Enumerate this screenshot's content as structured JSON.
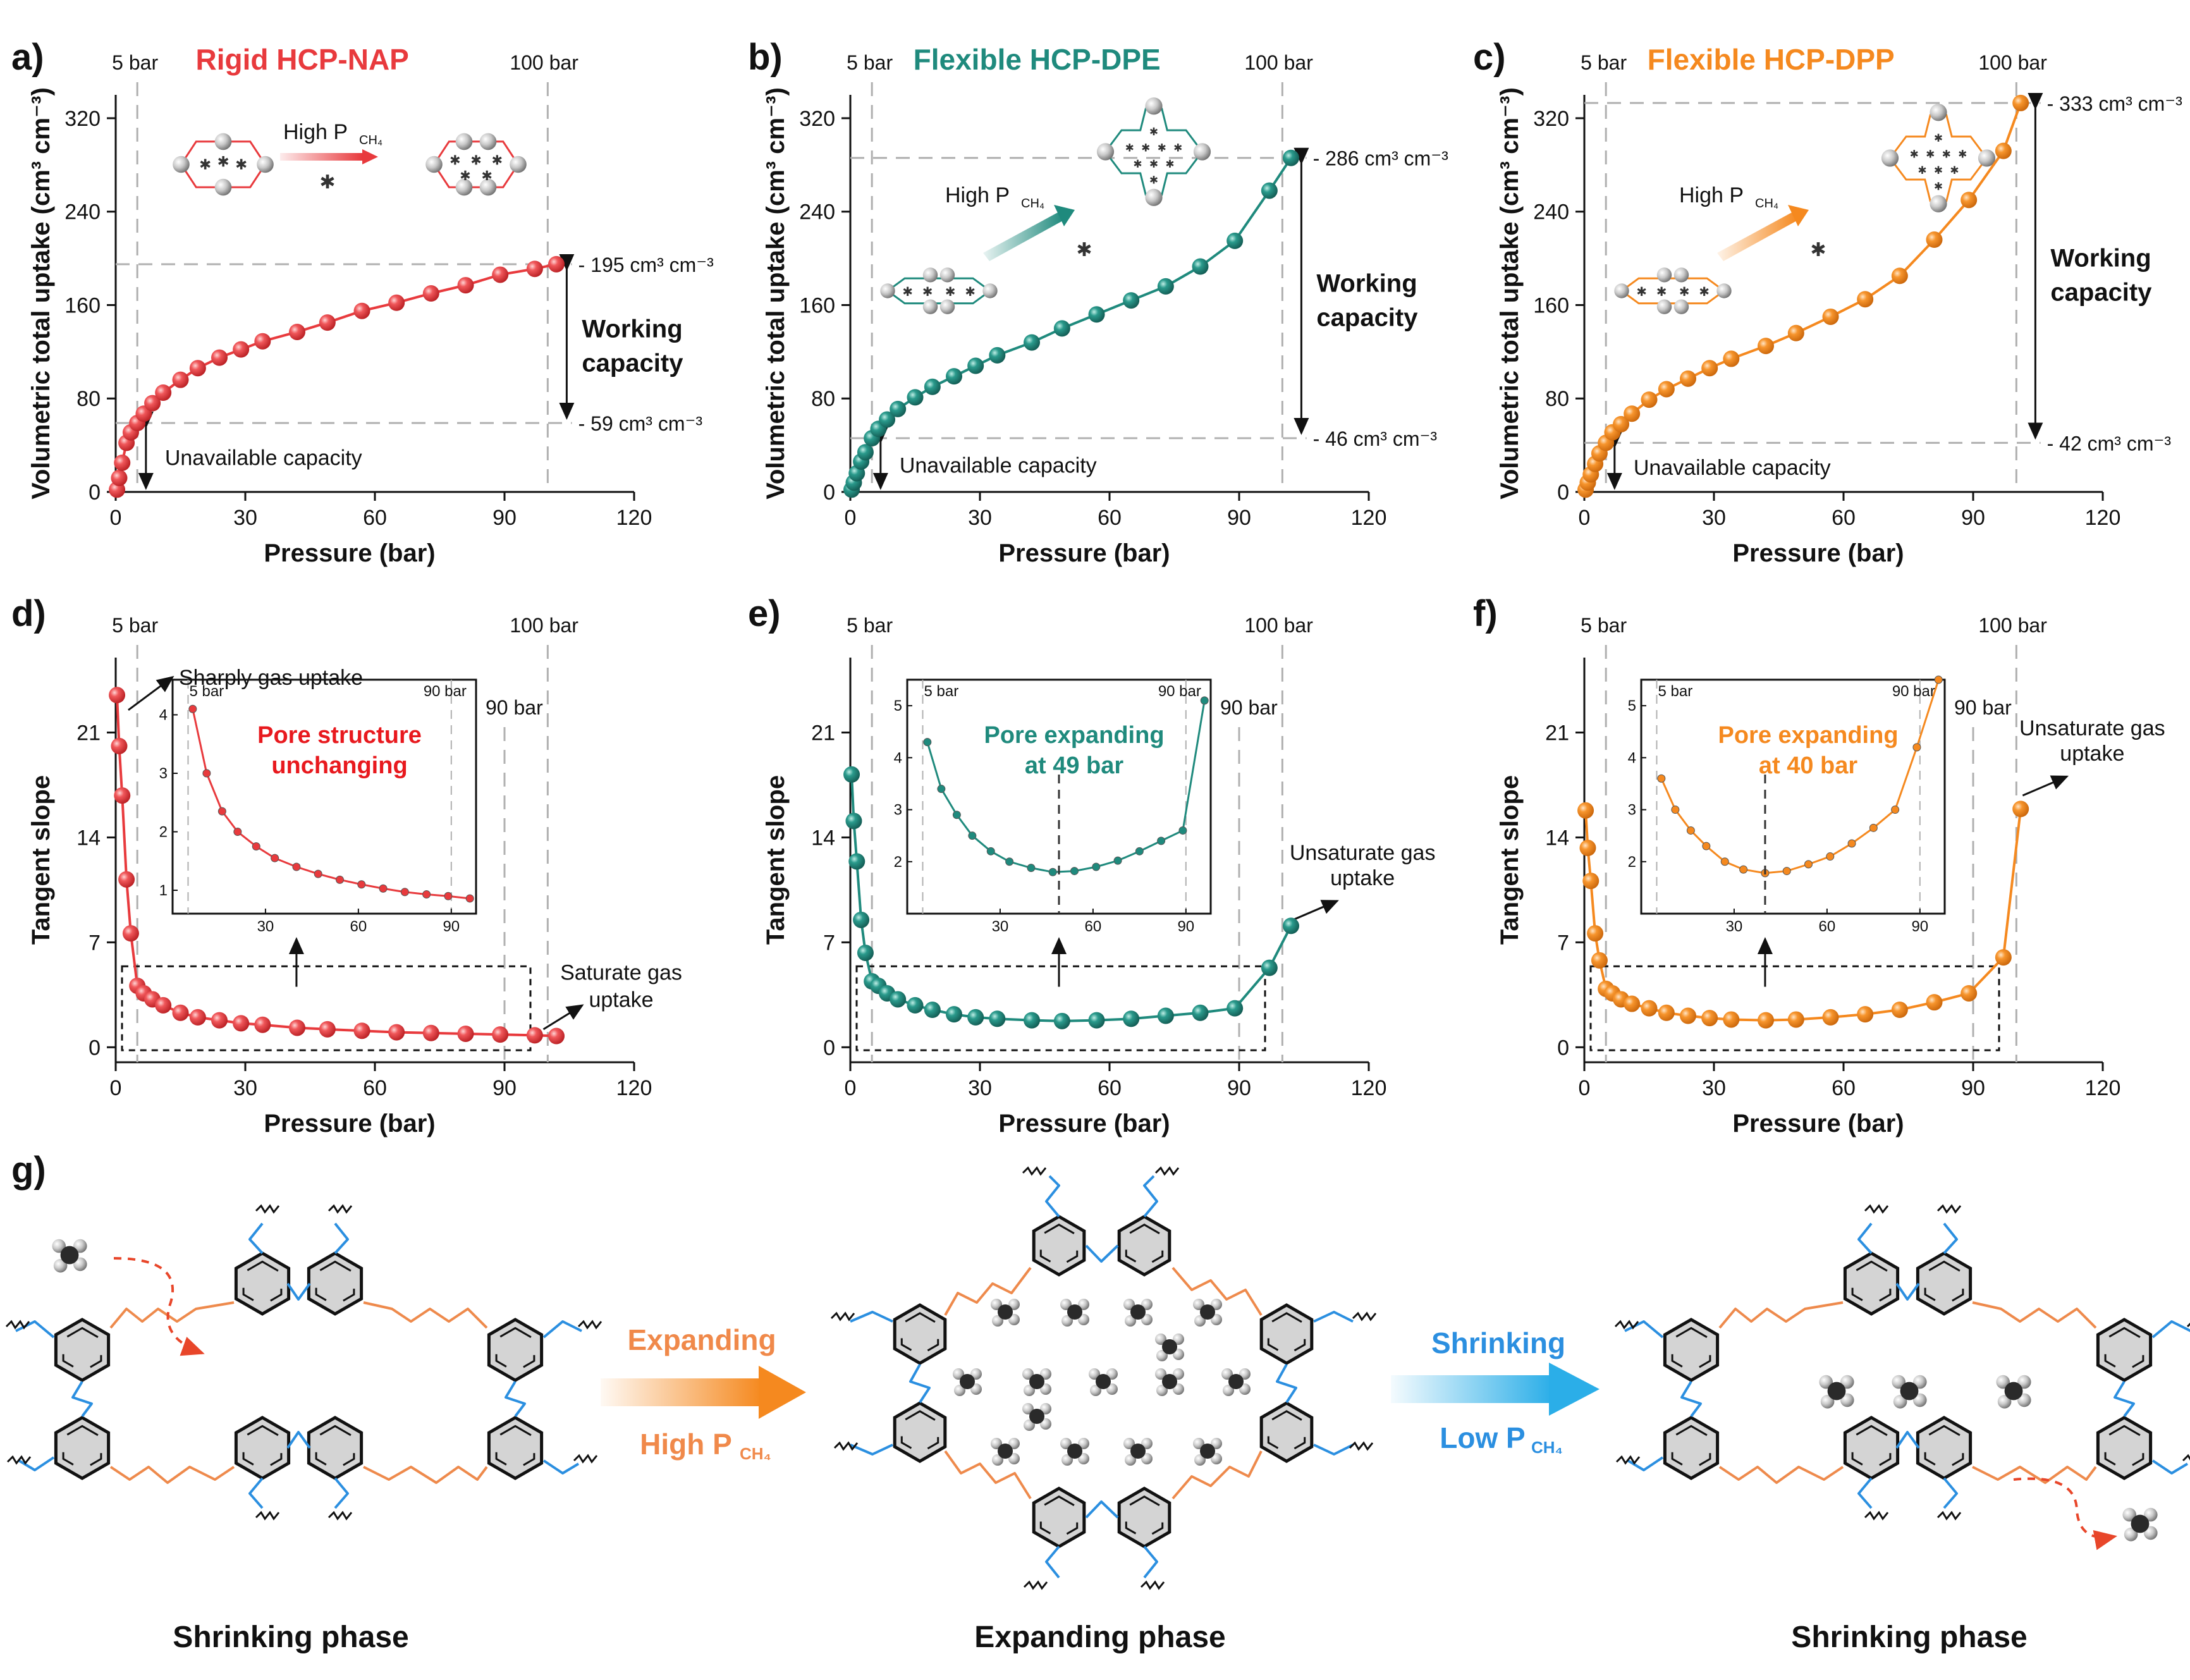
{
  "panel_labels": [
    "a)",
    "b)",
    "c)",
    "d)",
    "e)",
    "f)",
    "g)"
  ],
  "colors": {
    "nap": "#e83a3d",
    "dpe": "#1f8a7d",
    "dpp": "#f5891f",
    "blue": "#2b8fe0",
    "guide": "#b0b0b0"
  },
  "chart_data": [
    {
      "type": "scatter",
      "panel": "a)",
      "title": "Rigid HCP-NAP",
      "color": "#e83a3d",
      "xlabel": "Pressure (bar)",
      "ylabel": "Volumetric total uptake (cm³ cm⁻³)",
      "xlim": [
        0,
        120
      ],
      "ylim": [
        0,
        340
      ],
      "xticks": [
        0,
        30,
        60,
        90,
        120
      ],
      "yticks": [
        0,
        80,
        160,
        240,
        320
      ],
      "x": [
        0.3,
        0.8,
        1.5,
        2.5,
        3.5,
        5,
        6.5,
        8.5,
        11,
        15,
        19,
        24,
        29,
        34,
        42,
        49,
        57,
        65,
        73,
        81,
        89,
        97,
        102
      ],
      "y": [
        2,
        12,
        25,
        42,
        51,
        59,
        67,
        76,
        85,
        96,
        106,
        115,
        122,
        129,
        137,
        145,
        155,
        162,
        170,
        177,
        186,
        191,
        195
      ],
      "ref_lines_x": [
        5,
        100
      ],
      "ref_labels": [
        "5 bar",
        "100 bar"
      ],
      "values_marked": [
        "195 cm³ cm⁻³",
        "59 cm³ cm⁻³"
      ],
      "ref_lines_y": [
        195,
        59
      ],
      "working_label": [
        "Working",
        "capacity"
      ],
      "unavailable_label": "Unavailable capacity",
      "high_p_label": "High P",
      "high_p_sub": "CH₄"
    },
    {
      "type": "scatter",
      "panel": "b)",
      "title": "Flexible HCP-DPE",
      "color": "#1f8a7d",
      "xlabel": "Pressure (bar)",
      "ylabel": "Volumetric total uptake (cm³ cm⁻³)",
      "xlim": [
        0,
        120
      ],
      "ylim": [
        0,
        340
      ],
      "xticks": [
        0,
        30,
        60,
        90,
        120
      ],
      "yticks": [
        0,
        80,
        160,
        240,
        320
      ],
      "x": [
        0.3,
        0.8,
        1.5,
        2.5,
        3.5,
        5,
        6.5,
        8.5,
        11,
        15,
        19,
        24,
        29,
        34,
        42,
        49,
        57,
        65,
        73,
        81,
        89,
        97,
        102
      ],
      "y": [
        2,
        8,
        16,
        26,
        34,
        46,
        54,
        62,
        71,
        81,
        90,
        99,
        108,
        117,
        128,
        140,
        152,
        164,
        176,
        193,
        215,
        258,
        286
      ],
      "ref_lines_x": [
        5,
        100
      ],
      "ref_labels": [
        "5 bar",
        "100 bar"
      ],
      "values_marked": [
        "286 cm³ cm⁻³",
        "46 cm³ cm⁻³"
      ],
      "ref_lines_y": [
        286,
        46
      ],
      "working_label": [
        "Working",
        "capacity"
      ],
      "unavailable_label": "Unavailable capacity",
      "high_p_label": "High P",
      "high_p_sub": "CH₄"
    },
    {
      "type": "scatter",
      "panel": "c)",
      "title": "Flexible HCP-DPP",
      "color": "#f5891f",
      "xlabel": "Pressure (bar)",
      "ylabel": "Volumetric total uptake (cm³ cm⁻³)",
      "xlim": [
        0,
        120
      ],
      "ylim": [
        0,
        340
      ],
      "xticks": [
        0,
        30,
        60,
        90,
        120
      ],
      "yticks": [
        0,
        80,
        160,
        240,
        320
      ],
      "x": [
        0.3,
        0.8,
        1.5,
        2.5,
        3.5,
        5,
        6.5,
        8.5,
        11,
        15,
        19,
        24,
        29,
        34,
        42,
        49,
        57,
        65,
        73,
        81,
        89,
        97,
        101
      ],
      "y": [
        2,
        8,
        15,
        24,
        33,
        42,
        51,
        58,
        67,
        79,
        88,
        97,
        106,
        114,
        125,
        136,
        150,
        165,
        185,
        216,
        250,
        292,
        333
      ],
      "ref_lines_x": [
        5,
        100
      ],
      "ref_labels": [
        "5 bar",
        "100 bar"
      ],
      "values_marked": [
        "333 cm³ cm⁻³",
        "42 cm³ cm⁻³"
      ],
      "ref_lines_y": [
        333,
        42
      ],
      "working_label": [
        "Working",
        "capacity"
      ],
      "unavailable_label": "Unavailable capacity",
      "high_p_label": "High P",
      "high_p_sub": "CH₄"
    },
    {
      "type": "scatter",
      "panel": "d)",
      "color": "#e83a3d",
      "xlabel": "Pressure (bar)",
      "ylabel": "Tangent slope",
      "xlim": [
        0,
        120
      ],
      "ylim": [
        -1,
        26
      ],
      "xticks": [
        0,
        30,
        60,
        90,
        120
      ],
      "yticks": [
        0,
        7,
        14,
        21
      ],
      "x": [
        0.3,
        0.8,
        1.5,
        2.5,
        3.5,
        5,
        6.5,
        8.5,
        11,
        15,
        19,
        24,
        29,
        34,
        42,
        49,
        57,
        65,
        73,
        81,
        89,
        97,
        102
      ],
      "y": [
        23.5,
        20.1,
        16.8,
        11.2,
        7.6,
        4.1,
        3.6,
        3.2,
        2.8,
        2.3,
        2.0,
        1.8,
        1.6,
        1.5,
        1.3,
        1.2,
        1.1,
        1.0,
        0.95,
        0.9,
        0.85,
        0.8,
        0.75
      ],
      "ref_lines_x": [
        5,
        100,
        90
      ],
      "ref_labels": [
        "5 bar",
        "100 bar",
        "90 bar"
      ],
      "annotations": [
        "Sharply gas uptake",
        "Saturate gas",
        "uptake"
      ],
      "inset": {
        "title": [
          "Pore structure",
          "unchanging"
        ],
        "xticks": [
          30,
          60,
          90
        ],
        "yticks": [
          1,
          2,
          3,
          4
        ],
        "xlim": [
          0,
          98
        ],
        "ylim": [
          0.6,
          4.6
        ],
        "x": [
          6.5,
          11,
          16,
          21,
          27,
          33,
          40,
          47,
          54,
          61,
          68,
          75,
          82,
          89,
          96
        ],
        "y": [
          4.1,
          3.0,
          2.35,
          2.0,
          1.75,
          1.55,
          1.4,
          1.28,
          1.18,
          1.1,
          1.03,
          0.97,
          0.93,
          0.9,
          0.86
        ],
        "ref_labels": [
          "5 bar",
          "90 bar"
        ],
        "ref_x": [
          5,
          90
        ]
      }
    },
    {
      "type": "scatter",
      "panel": "e)",
      "color": "#1f8a7d",
      "xlabel": "Pressure (bar)",
      "ylabel": "Tangent slope",
      "xlim": [
        0,
        120
      ],
      "ylim": [
        -1,
        26
      ],
      "xticks": [
        0,
        30,
        60,
        90,
        120
      ],
      "yticks": [
        0,
        7,
        14,
        21
      ],
      "x": [
        0.3,
        0.8,
        1.5,
        2.5,
        3.5,
        5,
        6.5,
        8.5,
        11,
        15,
        19,
        24,
        29,
        34,
        42,
        49,
        57,
        65,
        73,
        81,
        89,
        97,
        102
      ],
      "y": [
        18.2,
        15.1,
        12.4,
        8.5,
        6.3,
        4.4,
        4.1,
        3.6,
        3.2,
        2.8,
        2.5,
        2.2,
        2.0,
        1.9,
        1.8,
        1.75,
        1.8,
        1.9,
        2.1,
        2.3,
        2.6,
        5.3,
        8.1
      ],
      "ref_lines_x": [
        5,
        100,
        90
      ],
      "ref_labels": [
        "5 bar",
        "100 bar",
        "90 bar"
      ],
      "annotations": [
        "Unsaturate gas",
        "uptake"
      ],
      "inset": {
        "title": [
          "Pore expanding",
          "at 49 bar"
        ],
        "xticks": [
          30,
          60,
          90
        ],
        "yticks": [
          2,
          3,
          4,
          5
        ],
        "xlim": [
          0,
          98
        ],
        "ylim": [
          1.0,
          5.5
        ],
        "x": [
          6.5,
          11,
          16,
          21,
          27,
          33,
          40,
          47,
          54,
          61,
          68,
          75,
          82,
          89,
          96
        ],
        "y": [
          4.3,
          3.4,
          2.9,
          2.5,
          2.2,
          2.0,
          1.88,
          1.8,
          1.82,
          1.9,
          2.02,
          2.2,
          2.4,
          2.6,
          5.1
        ],
        "ref_labels": [
          "5 bar",
          "90 bar"
        ],
        "ref_x": [
          5,
          90
        ],
        "mark_x": 49
      }
    },
    {
      "type": "scatter",
      "panel": "f)",
      "color": "#f5891f",
      "xlabel": "Pressure (bar)",
      "ylabel": "Tangent slope",
      "xlim": [
        0,
        120
      ],
      "ylim": [
        -1,
        26
      ],
      "xticks": [
        0,
        30,
        60,
        90,
        120
      ],
      "yticks": [
        0,
        7,
        14,
        21
      ],
      "x": [
        0.3,
        0.8,
        1.5,
        2.5,
        3.5,
        5,
        6.5,
        8.5,
        11,
        15,
        19,
        24,
        29,
        34,
        42,
        49,
        57,
        65,
        73,
        81,
        89,
        97,
        101
      ],
      "y": [
        15.8,
        13.3,
        11.1,
        7.6,
        5.8,
        3.9,
        3.6,
        3.2,
        2.9,
        2.6,
        2.3,
        2.1,
        1.95,
        1.85,
        1.8,
        1.85,
        2.0,
        2.2,
        2.5,
        3.0,
        3.6,
        6.0,
        15.9
      ],
      "ref_lines_x": [
        5,
        100,
        90
      ],
      "ref_labels": [
        "5 bar",
        "100 bar",
        "90 bar"
      ],
      "annotations": [
        "Unsaturate gas",
        "uptake"
      ],
      "inset": {
        "title": [
          "Pore expanding",
          "at 40 bar"
        ],
        "xticks": [
          30,
          60,
          90
        ],
        "yticks": [
          2,
          3,
          4,
          5
        ],
        "xlim": [
          0,
          98
        ],
        "ylim": [
          1.0,
          5.5
        ],
        "x": [
          6.5,
          11,
          16,
          21,
          27,
          33,
          40,
          47,
          54,
          61,
          68,
          75,
          82,
          89,
          96
        ],
        "y": [
          3.6,
          3.0,
          2.6,
          2.3,
          2.0,
          1.85,
          1.78,
          1.82,
          1.95,
          2.1,
          2.35,
          2.65,
          3.0,
          4.2,
          5.5
        ],
        "ref_labels": [
          "5 bar",
          "90 bar"
        ],
        "ref_x": [
          5,
          90
        ],
        "mark_x": 40
      }
    }
  ],
  "schematic": {
    "phases": [
      "Shrinking phase",
      "Expanding phase",
      "Shrinking phase"
    ],
    "expanding_arrow": {
      "label": "Expanding",
      "sub": "High P",
      "subscript": "CH₄"
    },
    "shrinking_arrow": {
      "label": "Shrinking",
      "sub": "Low P",
      "subscript": "CH₄"
    }
  }
}
